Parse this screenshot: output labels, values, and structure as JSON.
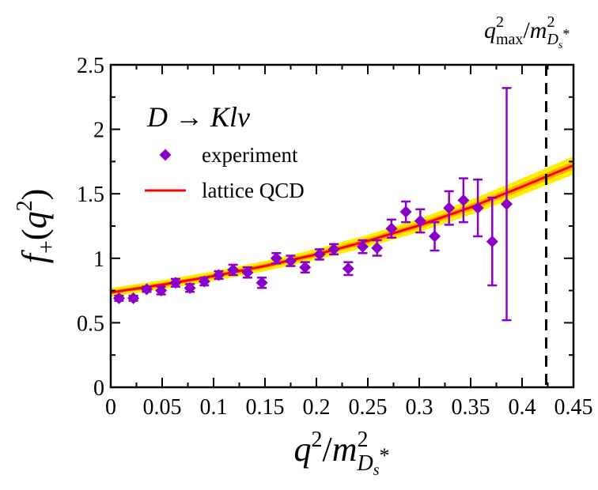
{
  "chart_data": {
    "type": "scatter",
    "legend_title": "D → Klν",
    "legend_placement": "top-left",
    "series": [
      {
        "name": "experiment",
        "kind": "points-with-error-bars",
        "marker": "diamond",
        "color": "#8b00c8",
        "points": [
          {
            "x": 0.008,
            "y": 0.69,
            "err": 0.02
          },
          {
            "x": 0.022,
            "y": 0.69,
            "err": 0.02
          },
          {
            "x": 0.035,
            "y": 0.76,
            "err": 0.02
          },
          {
            "x": 0.049,
            "y": 0.75,
            "err": 0.03
          },
          {
            "x": 0.063,
            "y": 0.81,
            "err": 0.03
          },
          {
            "x": 0.077,
            "y": 0.77,
            "err": 0.03
          },
          {
            "x": 0.091,
            "y": 0.82,
            "err": 0.03
          },
          {
            "x": 0.105,
            "y": 0.87,
            "err": 0.03
          },
          {
            "x": 0.119,
            "y": 0.91,
            "err": 0.04
          },
          {
            "x": 0.133,
            "y": 0.89,
            "err": 0.04
          },
          {
            "x": 0.147,
            "y": 0.81,
            "err": 0.04
          },
          {
            "x": 0.161,
            "y": 1.0,
            "err": 0.04
          },
          {
            "x": 0.175,
            "y": 0.98,
            "err": 0.04
          },
          {
            "x": 0.189,
            "y": 0.93,
            "err": 0.04
          },
          {
            "x": 0.203,
            "y": 1.03,
            "err": 0.04
          },
          {
            "x": 0.217,
            "y": 1.07,
            "err": 0.04
          },
          {
            "x": 0.231,
            "y": 0.92,
            "err": 0.05
          },
          {
            "x": 0.245,
            "y": 1.09,
            "err": 0.05
          },
          {
            "x": 0.259,
            "y": 1.08,
            "err": 0.06
          },
          {
            "x": 0.273,
            "y": 1.23,
            "err": 0.07
          },
          {
            "x": 0.287,
            "y": 1.36,
            "err": 0.08
          },
          {
            "x": 0.301,
            "y": 1.29,
            "err": 0.09
          },
          {
            "x": 0.315,
            "y": 1.17,
            "err": 0.11
          },
          {
            "x": 0.329,
            "y": 1.39,
            "err": 0.13
          },
          {
            "x": 0.343,
            "y": 1.45,
            "err": 0.17
          },
          {
            "x": 0.357,
            "y": 1.39,
            "err": 0.22
          },
          {
            "x": 0.371,
            "y": 1.13,
            "err": 0.34
          },
          {
            "x": 0.385,
            "y": 1.42,
            "err": 0.9
          }
        ]
      },
      {
        "name": "lattice QCD",
        "kind": "line-with-band",
        "color": "#ff0000",
        "band_colors": [
          "#ffee00",
          "#ffb000"
        ],
        "x": [
          0.0,
          0.05,
          0.1,
          0.15,
          0.2,
          0.25,
          0.3,
          0.35,
          0.4,
          0.45
        ],
        "y": [
          0.735,
          0.795,
          0.862,
          0.94,
          1.03,
          1.135,
          1.255,
          1.395,
          1.555,
          1.72
        ],
        "band_half_width": [
          0.035,
          0.036,
          0.038,
          0.04,
          0.043,
          0.047,
          0.052,
          0.058,
          0.064,
          0.07
        ]
      }
    ],
    "xlim": [
      0,
      0.45
    ],
    "ylim": [
      0,
      2.5
    ],
    "xticks": [
      0,
      0.05,
      0.1,
      0.15,
      0.2,
      0.25,
      0.3,
      0.35,
      0.4,
      0.45
    ],
    "yticks": [
      0,
      0.5,
      1,
      1.5,
      2,
      2.5
    ],
    "xtick_labels": [
      "0",
      "0.05",
      "0.1",
      "0.15",
      "0.2",
      "0.25",
      "0.3",
      "0.35",
      "0.4",
      "0.45"
    ],
    "ytick_labels": [
      "0",
      "0.5",
      "1",
      "1.5",
      "2",
      "2.5"
    ],
    "xlabel": {
      "base": "q",
      "sup": "2",
      "slash": "/",
      "m": "m",
      "msup": "2",
      "msub": "D",
      "msubsub": "s",
      "star": "*"
    },
    "ylabel": {
      "f": "f",
      "sub": "+",
      "open": "(",
      "q": "q",
      "sup": "2",
      "close": ")"
    },
    "vline": {
      "x": 0.4235,
      "style": "dashed"
    },
    "vline_label": {
      "q": "q",
      "sup": "2",
      "sub": "max",
      "slash": "/",
      "m": "m",
      "msup": "2",
      "msub": "D",
      "msubsub": "s",
      "star": "*"
    },
    "grid": false
  }
}
